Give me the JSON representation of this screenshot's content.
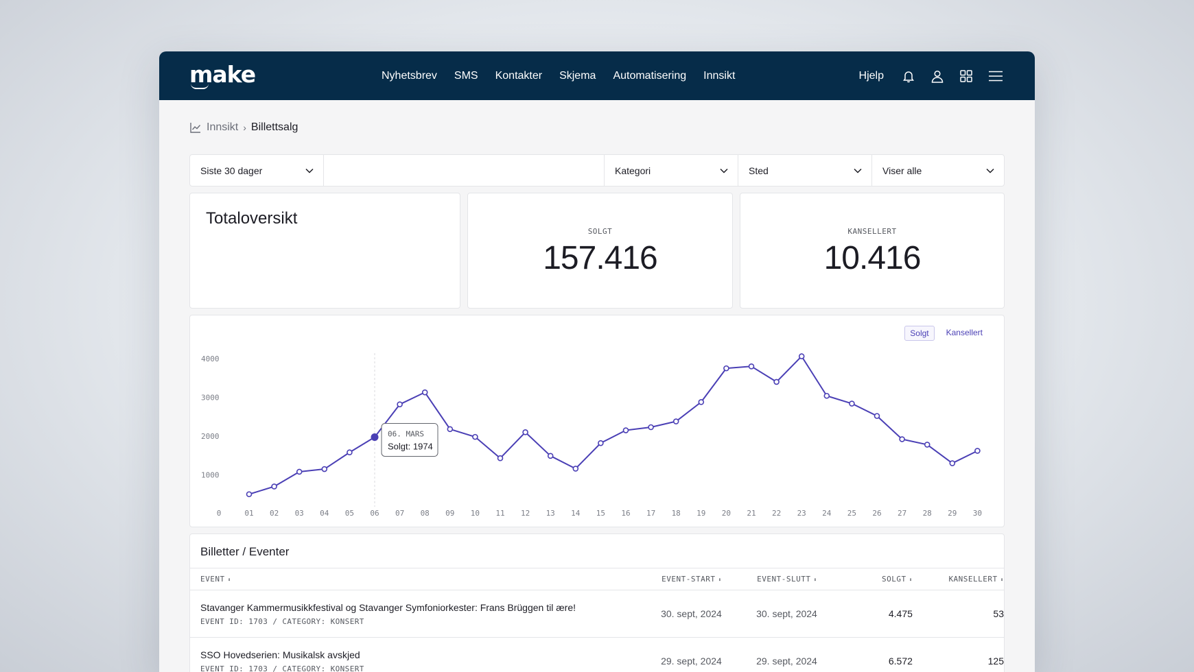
{
  "app": {
    "logo": "make",
    "nav": [
      "Nyhetsbrev",
      "SMS",
      "Kontakter",
      "Skjema",
      "Automatisering",
      "Innsikt"
    ],
    "help": "Hjelp",
    "icons": [
      "bell-icon",
      "user-icon",
      "apps-grid-icon",
      "menu-icon"
    ]
  },
  "breadcrumb": {
    "parent": "Innsikt",
    "current": "Billettsalg"
  },
  "filters": {
    "period": "Siste 30 dager",
    "search": "",
    "category": "Kategori",
    "place": "Sted",
    "display": "Viser alle"
  },
  "summary": {
    "title": "Totaloversikt",
    "sold_label": "SOLGT",
    "sold_value": "157.416",
    "cancelled_label": "KANSELLERT",
    "cancelled_value": "10.416"
  },
  "chart_data": {
    "type": "line",
    "legend": [
      "Solgt",
      "Kansellert"
    ],
    "active_series": "Solgt",
    "x": [
      "01",
      "02",
      "03",
      "04",
      "05",
      "06",
      "07",
      "08",
      "09",
      "10",
      "11",
      "12",
      "13",
      "14",
      "15",
      "16",
      "17",
      "18",
      "19",
      "20",
      "21",
      "22",
      "23",
      "24",
      "25",
      "26",
      "27",
      "28",
      "29",
      "30"
    ],
    "series": [
      {
        "name": "Solgt",
        "values": [
          500,
          700,
          1080,
          1150,
          1580,
          1974,
          2820,
          3130,
          2180,
          1980,
          1430,
          2100,
          1490,
          1160,
          1820,
          2150,
          2230,
          2380,
          2880,
          3750,
          3800,
          3400,
          4060,
          3040,
          2840,
          2520,
          1920,
          1780,
          1300,
          1620
        ]
      }
    ],
    "x_zero_label": "0",
    "y_ticks": [
      1000,
      2000,
      3000,
      4000
    ],
    "ylim": [
      0,
      4100
    ],
    "grid": false,
    "tooltip": {
      "index": 5,
      "date": "06. MARS",
      "label": "Solgt: 1974"
    },
    "color": "#4a3fb5"
  },
  "table": {
    "title": "Billetter / Eventer",
    "columns": [
      "EVENT",
      "EVENT-START",
      "EVENT-SLUTT",
      "SOLGT",
      "KANSELLERT"
    ],
    "sort_glyph": "⬍",
    "rows": [
      {
        "name": "Stavanger Kammermusikkfestival og Stavanger Symfoniorkester: Frans Brüggen til ære!",
        "meta": "EVENT ID: 1703 / CATEGORY: KONSERT",
        "start": "30. sept, 2024",
        "end": "30. sept, 2024",
        "sold": "4.475",
        "cancelled": "53"
      },
      {
        "name": "SSO Hovedserien: Musikalsk avskjed",
        "meta": "EVENT ID: 1703 / CATEGORY: KONSERT",
        "start": "29. sept, 2024",
        "end": "29. sept, 2024",
        "sold": "6.572",
        "cancelled": "125"
      }
    ]
  }
}
